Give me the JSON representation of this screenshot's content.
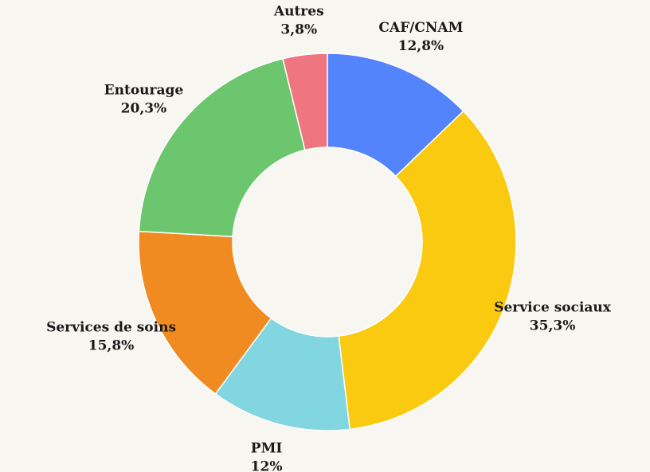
{
  "chart_data": {
    "type": "pie",
    "categories": [
      "CAF/CNAM",
      "Service sociaux",
      "PMI",
      "Services de soins",
      "Entourage",
      "Autres"
    ],
    "values": [
      12.8,
      35.3,
      12,
      15.8,
      20.3,
      3.8
    ],
    "value_labels": [
      "12,8%",
      "35,3%",
      "12%",
      "15,8%",
      "20,3%",
      "3,8%"
    ],
    "colors": [
      "#5384fb",
      "#f9ca10",
      "#81d6df",
      "#ef8b20",
      "#6bc66d",
      "#ef7580"
    ]
  }
}
